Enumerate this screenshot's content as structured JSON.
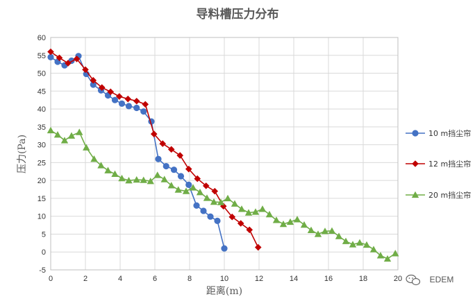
{
  "chart_data": {
    "type": "line",
    "title": "导料槽压力分布",
    "xlabel": "距离(m)",
    "ylabel": "压力(Pa)",
    "xlim": [
      0,
      20
    ],
    "ylim": [
      -5,
      60
    ],
    "xticks": [
      0,
      2,
      4,
      6,
      8,
      10,
      12,
      14,
      16,
      18,
      20
    ],
    "yticks": [
      -5,
      0,
      5,
      10,
      15,
      20,
      25,
      30,
      35,
      40,
      45,
      50,
      55,
      60
    ],
    "grid": true,
    "legend_position": "right",
    "series": [
      {
        "name": "10 m挡尘帘",
        "color": "#4472c4",
        "marker": "circle",
        "points": [
          [
            0,
            54.5
          ],
          [
            0.4,
            53.2
          ],
          [
            0.8,
            52.2
          ],
          [
            1.2,
            53.5
          ],
          [
            1.6,
            54.8
          ],
          [
            2.05,
            49.8
          ],
          [
            2.45,
            46.8
          ],
          [
            2.9,
            45.2
          ],
          [
            3.3,
            43.8
          ],
          [
            3.7,
            42.5
          ],
          [
            4.1,
            41.5
          ],
          [
            4.5,
            40.8
          ],
          [
            4.95,
            40.3
          ],
          [
            5.35,
            39.3
          ],
          [
            5.8,
            36.5
          ],
          [
            6.2,
            26
          ],
          [
            6.65,
            24
          ],
          [
            7.1,
            23
          ],
          [
            7.5,
            21.2
          ],
          [
            7.95,
            18.8
          ],
          [
            8.4,
            13
          ],
          [
            8.8,
            11.5
          ],
          [
            9.2,
            9.9
          ],
          [
            9.6,
            8.7
          ],
          [
            10.0,
            1.0
          ]
        ]
      },
      {
        "name": "12 m挡尘帘",
        "color": "#c00000",
        "marker": "diamond",
        "points": [
          [
            0,
            56.0
          ],
          [
            0.5,
            54.3
          ],
          [
            1.0,
            52.8
          ],
          [
            1.5,
            54.0
          ],
          [
            2.0,
            51.0
          ],
          [
            2.45,
            48.0
          ],
          [
            2.95,
            46.0
          ],
          [
            3.45,
            44.8
          ],
          [
            3.95,
            43.5
          ],
          [
            4.45,
            42.8
          ],
          [
            4.95,
            42.2
          ],
          [
            5.45,
            41.3
          ],
          [
            5.95,
            33.0
          ],
          [
            6.45,
            30.3
          ],
          [
            6.95,
            28.7
          ],
          [
            7.45,
            27.0
          ],
          [
            7.95,
            23.2
          ],
          [
            8.45,
            20.5
          ],
          [
            8.95,
            18.5
          ],
          [
            9.45,
            17.0
          ],
          [
            9.95,
            12.8
          ],
          [
            10.45,
            9.8
          ],
          [
            10.95,
            8.0
          ],
          [
            11.45,
            6.2
          ],
          [
            11.95,
            1.3
          ]
        ]
      },
      {
        "name": "20 m挡尘帘",
        "color": "#70ad47",
        "marker": "triangle",
        "points": [
          [
            0,
            34.0
          ],
          [
            0.4,
            32.8
          ],
          [
            0.8,
            31.2
          ],
          [
            1.2,
            32.5
          ],
          [
            1.65,
            33.5
          ],
          [
            2.05,
            29.2
          ],
          [
            2.5,
            26.0
          ],
          [
            2.9,
            24.2
          ],
          [
            3.3,
            22.8
          ],
          [
            3.7,
            21.8
          ],
          [
            4.1,
            20.6
          ],
          [
            4.5,
            20.0
          ],
          [
            4.95,
            20.2
          ],
          [
            5.35,
            20.1
          ],
          [
            5.75,
            19.8
          ],
          [
            6.15,
            21.5
          ],
          [
            6.55,
            20.3
          ],
          [
            6.95,
            18.6
          ],
          [
            7.35,
            17.4
          ],
          [
            7.8,
            17.0
          ],
          [
            8.2,
            18.0
          ],
          [
            8.6,
            16.7
          ],
          [
            9.0,
            15.1
          ],
          [
            9.4,
            14.0
          ],
          [
            9.8,
            13.9
          ],
          [
            10.2,
            15.0
          ],
          [
            10.6,
            13.5
          ],
          [
            11.0,
            12.0
          ],
          [
            11.4,
            11.0
          ],
          [
            11.8,
            11.2
          ],
          [
            12.2,
            12.0
          ],
          [
            12.6,
            10.5
          ],
          [
            13.0,
            8.9
          ],
          [
            13.4,
            7.8
          ],
          [
            13.8,
            8.4
          ],
          [
            14.2,
            9.1
          ],
          [
            14.6,
            7.6
          ],
          [
            15.0,
            6.1
          ],
          [
            15.4,
            5.0
          ],
          [
            15.8,
            5.8
          ],
          [
            16.2,
            5.9
          ],
          [
            16.6,
            4.4
          ],
          [
            17.0,
            3.0
          ],
          [
            17.4,
            2.1
          ],
          [
            17.8,
            2.6
          ],
          [
            18.2,
            2.0
          ],
          [
            18.6,
            0.7
          ],
          [
            19.0,
            -1.0
          ],
          [
            19.4,
            -1.9
          ],
          [
            19.85,
            -0.4
          ]
        ]
      }
    ]
  },
  "watermark": {
    "text": "EDEM",
    "icon": "wechat-icon"
  }
}
